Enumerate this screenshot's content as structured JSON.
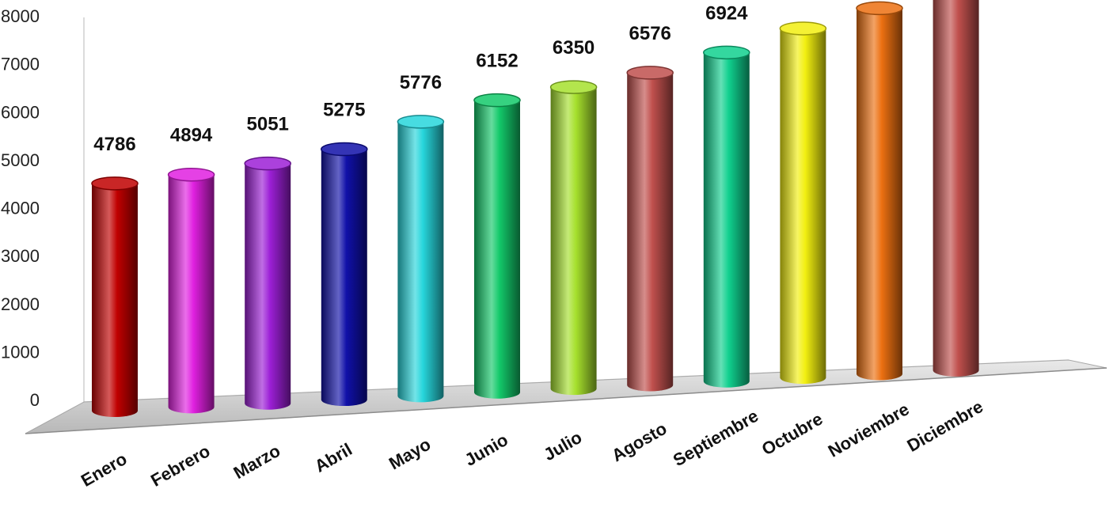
{
  "chart_data": {
    "type": "bar",
    "style": "3d-cylinder",
    "categories": [
      "Enero",
      "Febrero",
      "Marzo",
      "Abril",
      "Mayo",
      "Junio",
      "Julio",
      "Agosto",
      "Septiembre",
      "Octubre",
      "Noviembre",
      "Diciembre"
    ],
    "values": [
      4786,
      4894,
      5051,
      5275,
      5776,
      6152,
      6350,
      6576,
      6924,
      7353,
      7702,
      7992
    ],
    "colors": [
      "#c00000",
      "#e020e0",
      "#9c1fd6",
      "#1010a8",
      "#27d6dc",
      "#13c96a",
      "#a6e02d",
      "#c0504d",
      "#10d08e",
      "#f2ef10",
      "#ec7011",
      "#c0504d"
    ],
    "ylim": [
      0,
      8000
    ],
    "yticks": [
      "0",
      "1000",
      "2000",
      "3000",
      "4000",
      "5000",
      "6000",
      "7000",
      "8000"
    ],
    "grid": false,
    "legend": "none",
    "data_labels": true
  }
}
